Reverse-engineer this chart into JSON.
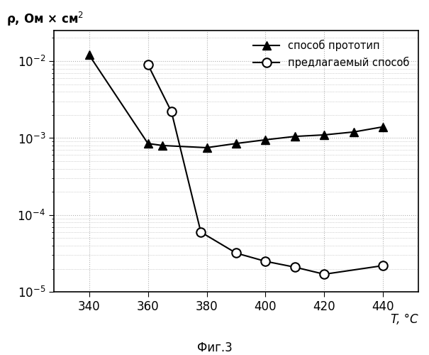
{
  "series1_label": "способ прототип",
  "series2_label": "предлагаемый способ",
  "series1_x": [
    340,
    360,
    365,
    380,
    390,
    400,
    410,
    420,
    430,
    440
  ],
  "series1_y": [
    0.012,
    0.00085,
    0.0008,
    0.00075,
    0.00085,
    0.00095,
    0.00105,
    0.0011,
    0.0012,
    0.0014
  ],
  "series2_x": [
    360,
    368,
    378,
    390,
    400,
    410,
    420,
    440
  ],
  "series2_y": [
    0.009,
    0.0022,
    6e-05,
    3.2e-05,
    2.5e-05,
    2.1e-05,
    1.7e-05,
    2.2e-05
  ],
  "ylabel_top": "ρ, Ом × см",
  "xlabel": "T, °C",
  "fig_label": "Фиг.3",
  "xlim": [
    328,
    452
  ],
  "ylim": [
    1e-05,
    0.025
  ],
  "xticks": [
    340,
    360,
    380,
    400,
    420,
    440
  ],
  "bg_color": "#ffffff",
  "grid_color": "#b0b0b0",
  "line_color": "#000000"
}
